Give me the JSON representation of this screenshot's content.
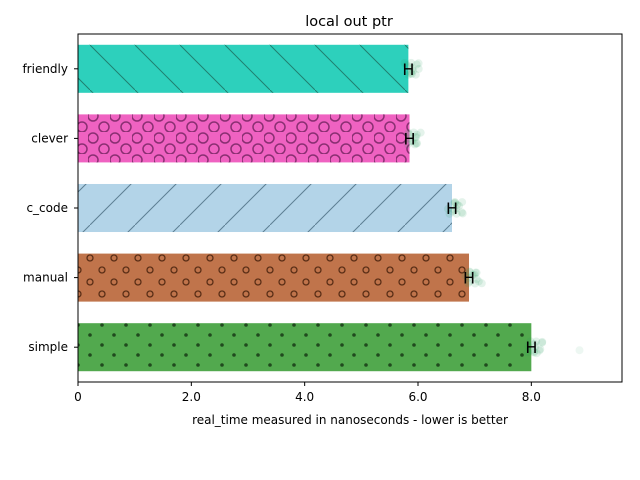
{
  "chart_data": {
    "type": "bar",
    "orientation": "horizontal",
    "title": "local out ptr",
    "xlabel": "real_time measured in nanoseconds - lower is better",
    "ylabel": "",
    "xlim": [
      0,
      9.6
    ],
    "xticks": [
      "0",
      "2.0",
      "4.0",
      "6.0",
      "8.0"
    ],
    "categories": [
      "friendly",
      "clever",
      "c_code",
      "manual",
      "simple"
    ],
    "values": [
      5.83,
      5.85,
      6.6,
      6.9,
      8.0
    ],
    "colors": [
      "#2dd0bc",
      "#ef62c1",
      "#b3d4e8",
      "#c0744b",
      "#52a94e"
    ],
    "hatches": [
      "backslash",
      "circles",
      "slash",
      "small-circles",
      "dots"
    ],
    "error_marker": "H",
    "grid": false,
    "legend": "none"
  }
}
